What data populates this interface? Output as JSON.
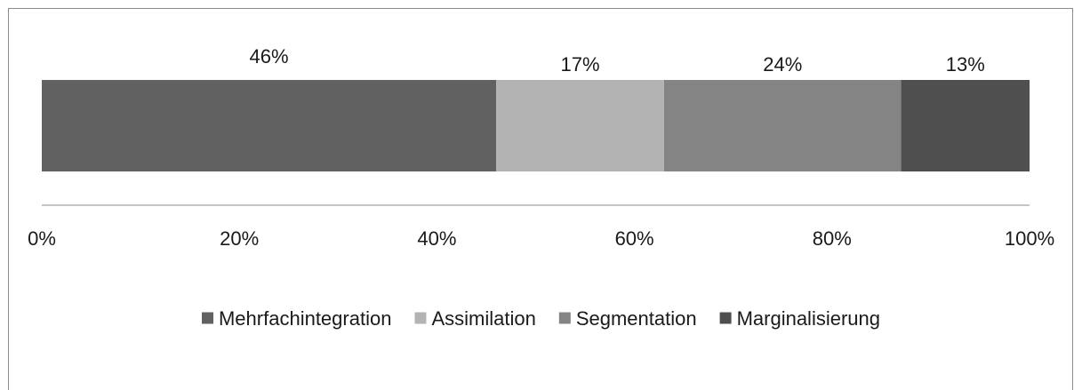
{
  "chart_data": {
    "type": "bar",
    "orientation": "horizontal",
    "stacked": "percent",
    "categories": [
      ""
    ],
    "series": [
      {
        "name": "Mehrfachintegration",
        "values": [
          46
        ],
        "color": "#616161",
        "label": "46%"
      },
      {
        "name": "Assimilation",
        "values": [
          17
        ],
        "color": "#b3b3b3",
        "label": "17%"
      },
      {
        "name": "Segmentation",
        "values": [
          24
        ],
        "color": "#848484",
        "label": "24%"
      },
      {
        "name": "Marginalisierung",
        "values": [
          13
        ],
        "color": "#4f4f4f",
        "label": "13%"
      }
    ],
    "xticks": [
      "0%",
      "20%",
      "40%",
      "60%",
      "80%",
      "100%"
    ],
    "xlim": [
      0,
      100
    ],
    "grid": false,
    "legend_position": "bottom"
  }
}
